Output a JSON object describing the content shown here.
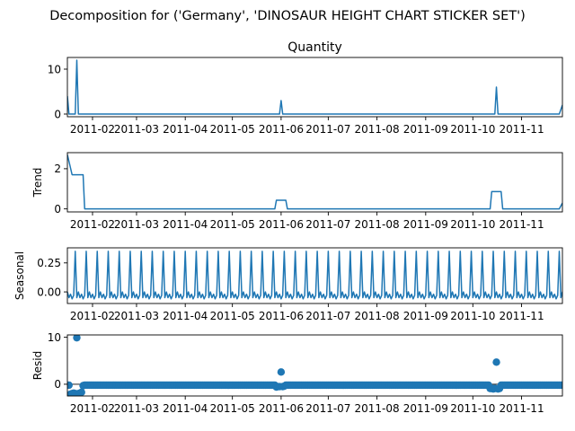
{
  "figure": {
    "suptitle": "Decomposition for ('Germany', 'DINOSAUR HEIGHT CHART STICKER SET')"
  },
  "x_ticks": [
    "2011-02",
    "2011-03",
    "2011-04",
    "2011-05",
    "2011-06",
    "2011-07",
    "2011-08",
    "2011-09",
    "2011-10",
    "2011-11"
  ],
  "chart_data": [
    {
      "type": "line",
      "panel": "observed",
      "title": "Quantity",
      "ylabel": "",
      "xlim": [
        "2011-01-16",
        "2011-11-27"
      ],
      "ylim": [
        -0.6,
        12.6
      ],
      "yticks": [
        0,
        10
      ],
      "ytick_labels": [
        "0",
        "10"
      ],
      "color": "#1f77b4",
      "points": [
        [
          "2011-01-16",
          4
        ],
        [
          "2011-01-17",
          0
        ],
        [
          "2011-01-21",
          0
        ],
        [
          "2011-01-22",
          12
        ],
        [
          "2011-01-23",
          0
        ],
        [
          "2011-05-31",
          0
        ],
        [
          "2011-06-01",
          3
        ],
        [
          "2011-06-02",
          0
        ],
        [
          "2011-10-15",
          0
        ],
        [
          "2011-10-16",
          6
        ],
        [
          "2011-10-17",
          0
        ],
        [
          "2011-11-25",
          0
        ],
        [
          "2011-11-27",
          2
        ]
      ]
    },
    {
      "type": "line",
      "panel": "trend",
      "title": "",
      "ylabel": "Trend",
      "xlim": [
        "2011-01-16",
        "2011-11-27"
      ],
      "ylim": [
        -0.15,
        2.8
      ],
      "yticks": [
        0,
        2
      ],
      "ytick_labels": [
        "0",
        "2"
      ],
      "color": "#1f77b4",
      "points": [
        [
          "2011-01-16",
          2.7
        ],
        [
          "2011-01-19",
          1.7
        ],
        [
          "2011-01-26",
          1.7
        ],
        [
          "2011-01-27",
          0
        ],
        [
          "2011-05-28",
          0
        ],
        [
          "2011-05-29",
          0.43
        ],
        [
          "2011-06-04",
          0.43
        ],
        [
          "2011-06-05",
          0
        ],
        [
          "2011-10-12",
          0
        ],
        [
          "2011-10-13",
          0.86
        ],
        [
          "2011-10-19",
          0.86
        ],
        [
          "2011-10-20",
          0
        ],
        [
          "2011-11-25",
          0
        ],
        [
          "2011-11-27",
          0.29
        ]
      ]
    },
    {
      "type": "line",
      "panel": "seasonal",
      "title": "",
      "ylabel": "Seasonal",
      "xlim": [
        "2011-01-16",
        "2011-11-27"
      ],
      "ylim": [
        -0.1,
        0.38
      ],
      "yticks": [
        0.0,
        0.25
      ],
      "ytick_labels": [
        "0.00",
        "0.25"
      ],
      "color": "#1f77b4",
      "period_days": 7,
      "start": "2011-01-16",
      "weekly_pattern": [
        0.0,
        -0.05,
        -0.02,
        -0.06,
        -0.03,
        0.35,
        -0.05
      ]
    },
    {
      "type": "scatter",
      "panel": "resid",
      "title": "",
      "ylabel": "Resid",
      "xlim": [
        "2011-01-16",
        "2011-11-27"
      ],
      "ylim": [
        -2.5,
        10.5
      ],
      "yticks": [
        0,
        10
      ],
      "ytick_labels": [
        "0",
        "10"
      ],
      "color": "#1f77b4",
      "baseline": 0,
      "default_value": -0.2,
      "start": "2011-01-16",
      "end": "2011-11-27",
      "overrides": [
        [
          "2011-01-18",
          -2.1
        ],
        [
          "2011-01-19",
          -2.0
        ],
        [
          "2011-01-20",
          -1.9
        ],
        [
          "2011-01-21",
          -2.0
        ],
        [
          "2011-01-22",
          9.9
        ],
        [
          "2011-01-23",
          -2.0
        ],
        [
          "2011-01-24",
          -1.9
        ],
        [
          "2011-01-25",
          -1.7
        ],
        [
          "2011-01-26",
          -0.3
        ],
        [
          "2011-05-29",
          -0.6
        ],
        [
          "2011-05-30",
          -0.5
        ],
        [
          "2011-05-31",
          -0.5
        ],
        [
          "2011-06-01",
          2.6
        ],
        [
          "2011-06-02",
          -0.5
        ],
        [
          "2011-06-03",
          -0.4
        ],
        [
          "2011-10-12",
          -0.9
        ],
        [
          "2011-10-13",
          -0.9
        ],
        [
          "2011-10-14",
          -1.0
        ],
        [
          "2011-10-15",
          -0.9
        ],
        [
          "2011-10-16",
          4.7
        ],
        [
          "2011-10-17",
          -1.0
        ],
        [
          "2011-10-18",
          -0.9
        ]
      ]
    }
  ]
}
